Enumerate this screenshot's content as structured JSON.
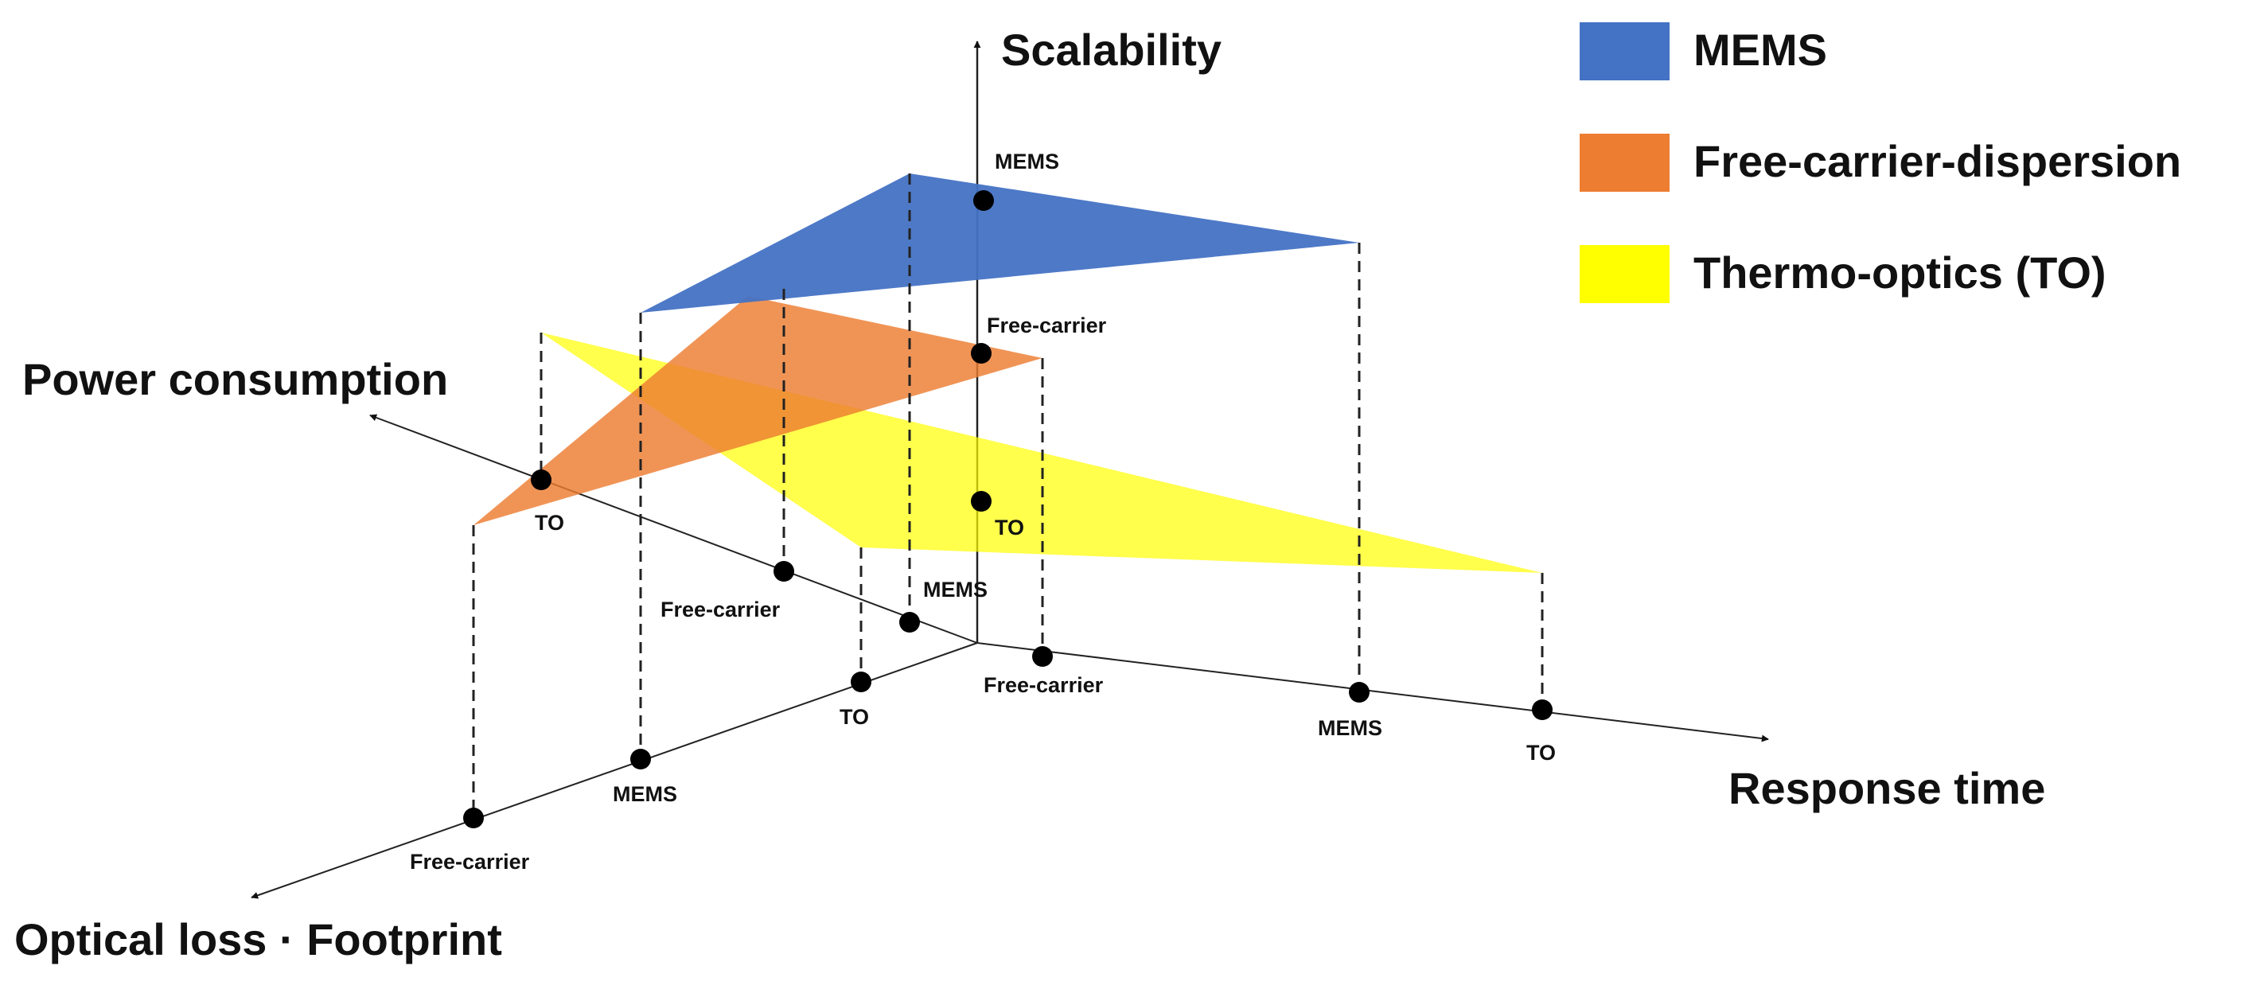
{
  "axes": {
    "scalability": "Scalability",
    "power": "Power consumption",
    "response": "Response time",
    "optical": "Optical loss · Footprint"
  },
  "legend": [
    {
      "label": "MEMS",
      "color": "#4472c4"
    },
    {
      "label": "Free-carrier-dispersion",
      "color": "#ed7d31"
    },
    {
      "label": "Thermo-optics (TO)",
      "color": "#ffff00"
    }
  ],
  "point_labels": {
    "mems": "MEMS",
    "free_carrier": "Free-carrier",
    "to": "TO"
  },
  "colors": {
    "mems": "#4472c4",
    "free_carrier": "#ed7d31",
    "to": "#ffff00"
  }
}
